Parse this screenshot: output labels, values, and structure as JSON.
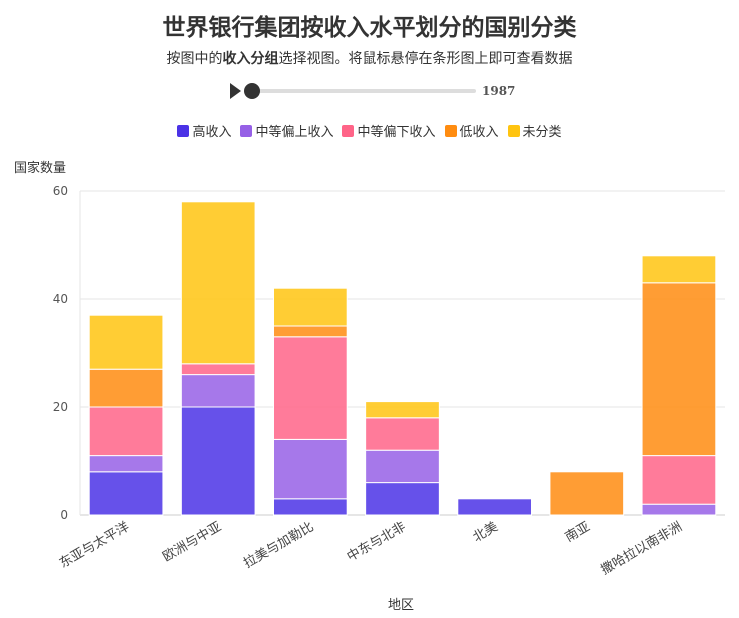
{
  "chart_data": {
    "type": "bar",
    "stacked": true,
    "title": "世界银行集团按收入水平划分的国别分类",
    "subtitle_parts": [
      "按图中的",
      "收入分组",
      "选择视图。将鼠标悬停在条形图上即可查看数据"
    ],
    "slider_label": "1987",
    "x_label": "地区",
    "y_label": "国家数量",
    "categories": [
      "东亚与太平洋",
      "欧洲与中亚",
      "拉美与加勒比",
      "中东与北非",
      "北美",
      "南亚",
      "撒哈拉以南非洲"
    ],
    "series": [
      {
        "name": "高收入",
        "color": "#4b32e6",
        "values": [
          8,
          20,
          3,
          6,
          3,
          0,
          0
        ]
      },
      {
        "name": "中等偏上收入",
        "color": "#9660e6",
        "values": [
          3,
          6,
          11,
          6,
          0,
          0,
          2
        ]
      },
      {
        "name": "中等偏下收入",
        "color": "#ff6488",
        "values": [
          9,
          2,
          19,
          6,
          0,
          0,
          9
        ]
      },
      {
        "name": "低收入",
        "color": "#ff8c10",
        "values": [
          7,
          0,
          2,
          0,
          0,
          8,
          32
        ]
      },
      {
        "name": "未分类",
        "color": "#ffc410",
        "values": [
          10,
          30,
          7,
          3,
          0,
          0,
          5
        ]
      }
    ],
    "ylim": [
      0,
      60
    ],
    "yticks": [
      0,
      20,
      40,
      60
    ],
    "grid": true
  }
}
